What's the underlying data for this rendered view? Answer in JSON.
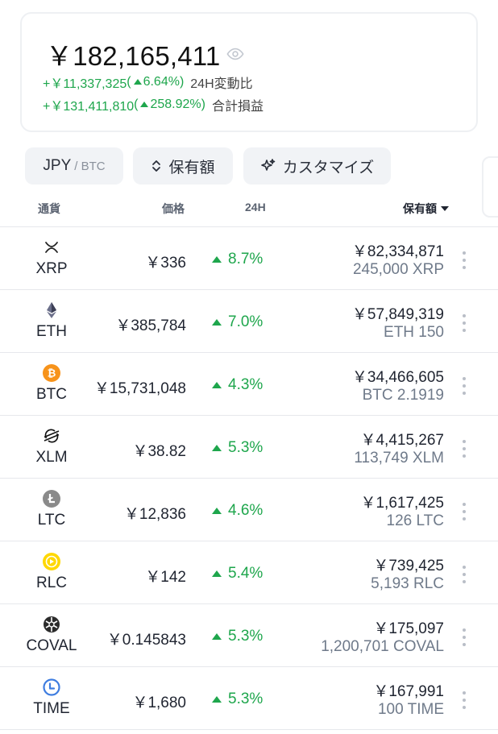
{
  "summary": {
    "total": "￥182,165,411",
    "change24h_amount": "+￥11,337,325",
    "change24h_pct": "6.64%",
    "change24h_label": "24H変動比",
    "total_pl_amount": "+￥131,411,810",
    "total_pl_pct": "258.92%",
    "total_pl_label": "合計損益"
  },
  "toolbar": {
    "currency_main": "JPY",
    "currency_sub": "/ BTC",
    "sort_label": "保有額",
    "customize_label": "カスタマイズ"
  },
  "table": {
    "headers": {
      "currency": "通貨",
      "price": "価格",
      "change": "24H",
      "holdings": "保有額"
    },
    "rows": [
      {
        "symbol": "XRP",
        "price": "￥336",
        "change": "8.7%",
        "value": "￥82,334,871",
        "amount": "245,000 XRP",
        "icon": "xrp-icon"
      },
      {
        "symbol": "ETH",
        "price": "￥385,784",
        "change": "7.0%",
        "value": "￥57,849,319",
        "amount": "ETH 150",
        "icon": "eth-icon"
      },
      {
        "symbol": "BTC",
        "price": "￥15,731,048",
        "change": "4.3%",
        "value": "￥34,466,605",
        "amount": "BTC 2.1919",
        "icon": "btc-icon"
      },
      {
        "symbol": "XLM",
        "price": "￥38.82",
        "change": "5.3%",
        "value": "￥4,415,267",
        "amount": "113,749 XLM",
        "icon": "xlm-icon"
      },
      {
        "symbol": "LTC",
        "price": "￥12,836",
        "change": "4.6%",
        "value": "￥1,617,425",
        "amount": "126 LTC",
        "icon": "ltc-icon"
      },
      {
        "symbol": "RLC",
        "price": "￥142",
        "change": "5.4%",
        "value": "￥739,425",
        "amount": "5,193 RLC",
        "icon": "rlc-icon"
      },
      {
        "symbol": "COVAL",
        "price": "￥0.145843",
        "change": "5.3%",
        "value": "￥175,097",
        "amount": "1,200,701 COVAL",
        "icon": "coval-icon"
      },
      {
        "symbol": "TIME",
        "price": "￥1,680",
        "change": "5.3%",
        "value": "￥167,991",
        "amount": "100 TIME",
        "icon": "time-icon"
      }
    ]
  },
  "colors": {
    "up": "#1ea64c",
    "button_bg": "#f1f3f6",
    "muted": "#6f7a8a"
  }
}
